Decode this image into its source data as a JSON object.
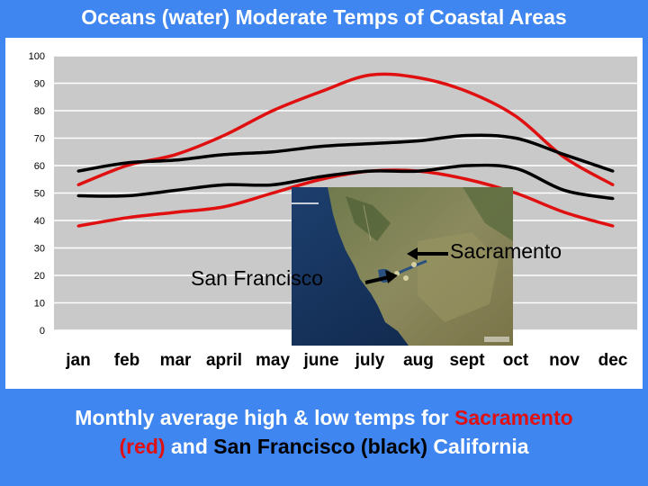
{
  "title": "Oceans (water) Moderate Temps of Coastal Areas",
  "chart_data": {
    "type": "line",
    "categories": [
      "jan",
      "feb",
      "mar",
      "april",
      "may",
      "june",
      "july",
      "aug",
      "sept",
      "oct",
      "nov",
      "dec"
    ],
    "ylim": [
      0,
      100
    ],
    "yticks": [
      "0",
      "10",
      "20",
      "30",
      "40",
      "50",
      "60",
      "70",
      "80",
      "90",
      "100"
    ],
    "grid": true,
    "series": [
      {
        "name": "Sacramento high",
        "color": "#e01010",
        "values": [
          53,
          60,
          64,
          71,
          80,
          87,
          93,
          92,
          87,
          78,
          63,
          53
        ]
      },
      {
        "name": "Sacramento low",
        "color": "#e01010",
        "values": [
          38,
          41,
          43,
          45,
          50,
          55,
          58,
          58,
          55,
          50,
          43,
          38
        ]
      },
      {
        "name": "San Francisco high",
        "color": "#000000",
        "values": [
          58,
          61,
          62,
          64,
          65,
          67,
          68,
          69,
          71,
          70,
          64,
          58
        ]
      },
      {
        "name": "San Francisco low",
        "color": "#000000",
        "values": [
          49,
          49,
          51,
          53,
          53,
          56,
          58,
          58,
          60,
          59,
          51,
          48
        ]
      }
    ]
  },
  "map": {
    "label_sacramento": "Sacramento",
    "label_san_francisco": "San Francisco"
  },
  "caption": {
    "part1": "Monthly average high & low temps for ",
    "sacramento": "Sacramento",
    "red": "(red)",
    "and": " and ",
    "san_francisco": "San Francisco",
    "black": "(black)",
    "california": " California"
  }
}
